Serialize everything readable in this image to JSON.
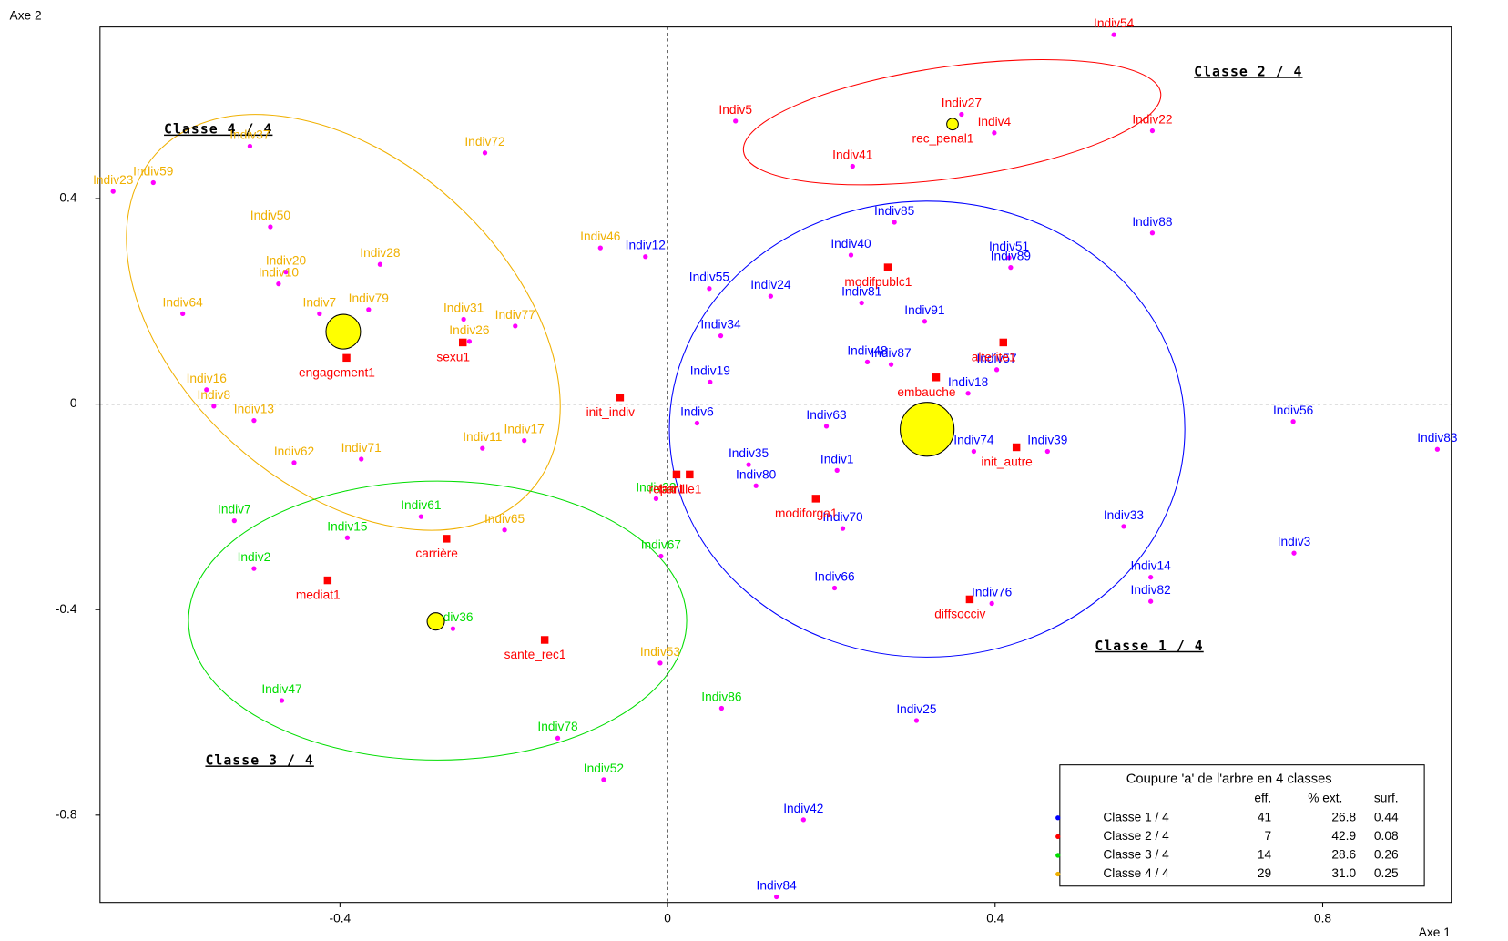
{
  "chart_data": {
    "type": "scatter",
    "xlabel": "Axe 1",
    "ylabel": "Axe 2",
    "xlim": [
      -0.693,
      0.957
    ],
    "ylim": [
      -0.97,
      0.734
    ],
    "xticks": [
      -0.4,
      0,
      0.4,
      0.8
    ],
    "yticks": [
      0.4,
      0,
      -0.4,
      -0.8
    ],
    "marker_color": "#ff00ff",
    "legend_title": "Coupure 'a' de l'arbre en  4 classes",
    "legend_columns": [
      "eff.",
      "% ext.",
      "surf."
    ],
    "series": [
      {
        "name": "Classe  1 / 4",
        "color": "#0000ff",
        "eff": 41,
        "ext": "26.8",
        "surf": 0.44,
        "labels": [
          "Indiv85",
          "Indiv12",
          "Indiv40",
          "Indiv51",
          "Indiv88",
          "Indiv89",
          "Indiv55",
          "Indiv24",
          "Indiv81",
          "Indiv91",
          "Indiv34",
          "Indiv48",
          "Indiv87",
          "Indiv57",
          "Indiv19",
          "Indiv18",
          "Indiv6",
          "Indiv63",
          "Indiv74",
          "Indiv39",
          "Indiv56",
          "Indiv83",
          "Indiv35",
          "Indiv1",
          "Indiv80",
          "Indiv70",
          "Indiv33",
          "Indiv3",
          "Indiv14",
          "Indiv82",
          "Indiv66",
          "Indiv76",
          "Indiv25",
          "Indiv42",
          "Indiv84"
        ],
        "x": [
          0.277,
          -0.027,
          0.224,
          0.417,
          0.592,
          0.419,
          0.051,
          0.126,
          0.237,
          0.314,
          0.065,
          0.244,
          0.273,
          0.402,
          0.052,
          0.367,
          0.036,
          0.194,
          0.374,
          0.464,
          0.764,
          0.94,
          0.099,
          0.207,
          0.108,
          0.214,
          0.557,
          0.765,
          0.59,
          0.59,
          0.204,
          0.396,
          0.304,
          0.166,
          0.133
        ],
        "y": [
          0.354,
          0.287,
          0.29,
          0.285,
          0.333,
          0.266,
          0.225,
          0.21,
          0.197,
          0.161,
          0.133,
          0.082,
          0.077,
          0.067,
          0.043,
          0.021,
          -0.037,
          -0.043,
          -0.092,
          -0.092,
          -0.034,
          -0.088,
          -0.118,
          -0.129,
          -0.159,
          -0.242,
          -0.238,
          -0.29,
          -0.337,
          -0.384,
          -0.358,
          -0.388,
          -0.616,
          -0.809,
          -0.959
        ]
      },
      {
        "name": "Classe  2 / 4",
        "color": "#ff0000",
        "eff": 7,
        "ext": "42.9",
        "surf": 0.08,
        "labels": [
          "Indiv54",
          "Indiv27",
          "Indiv5",
          "Indiv4",
          "Indiv22",
          "Indiv41"
        ],
        "x": [
          0.545,
          0.359,
          0.083,
          0.399,
          0.592,
          0.226
        ],
        "y": [
          0.719,
          0.564,
          0.551,
          0.528,
          0.532,
          0.463
        ]
      },
      {
        "name": "Classe  3 / 4",
        "color": "#00dd00",
        "eff": 14,
        "ext": "28.6",
        "surf": 0.26,
        "labels": [
          "Indiv7",
          "Indiv61",
          "Indiv15",
          "Indiv2",
          "Indiv36",
          "Indiv47",
          "Indiv78",
          "Indiv52",
          "Indiv86",
          "Indiv32",
          "Indiv67"
        ],
        "x": [
          -0.529,
          -0.301,
          -0.391,
          -0.505,
          -0.262,
          -0.471,
          -0.134,
          -0.078,
          0.066,
          -0.014,
          -0.008
        ],
        "y": [
          -0.227,
          -0.219,
          -0.26,
          -0.32,
          -0.437,
          -0.577,
          -0.65,
          -0.731,
          -0.592,
          -0.184,
          -0.296
        ]
      },
      {
        "name": "Classe  4 / 4",
        "color": "#f0b000",
        "eff": 29,
        "ext": "31.0",
        "surf": 0.25,
        "labels": [
          "Indiv59",
          "Indiv23",
          "Indiv37",
          "Indiv72",
          "Indiv50",
          "Indiv46",
          "Indiv28",
          "Indiv20",
          "Indiv10",
          "Indiv64",
          "Indiv7",
          "Indiv79",
          "Indiv31",
          "Indiv77",
          "Indiv26",
          "Indiv16",
          "Indiv8",
          "Indiv13",
          "Indiv17",
          "Indiv11",
          "Indiv62",
          "Indiv71",
          "Indiv53",
          "Indiv65"
        ],
        "x": [
          -0.628,
          -0.677,
          -0.51,
          -0.223,
          -0.485,
          -0.082,
          -0.351,
          -0.466,
          -0.475,
          -0.592,
          -0.425,
          -0.365,
          -0.249,
          -0.186,
          -0.242,
          -0.563,
          -0.554,
          -0.505,
          -0.175,
          -0.226,
          -0.456,
          -0.374,
          -0.009,
          -0.199
        ],
        "y": [
          0.431,
          0.414,
          0.502,
          0.489,
          0.345,
          0.304,
          0.272,
          0.257,
          0.234,
          0.176,
          0.176,
          0.184,
          0.165,
          0.152,
          0.122,
          0.028,
          -0.004,
          -0.032,
          -0.071,
          -0.086,
          -0.114,
          -0.107,
          -0.504,
          -0.245
        ]
      }
    ],
    "modalities": {
      "color": "#ff0000",
      "labels": [
        "engagement1",
        "sexu1",
        "init_indiv",
        "famille1",
        "repar1",
        "modifpublc1",
        "alterite1",
        "embauche",
        "init_autre",
        "modiforga1",
        "carrière",
        "mediat1",
        "sante_rec1",
        "diffsocciv",
        "rec_penal1"
      ],
      "x": [
        -0.392,
        -0.25,
        -0.058,
        0.027,
        0.011,
        0.269,
        0.41,
        0.328,
        0.426,
        0.181,
        -0.27,
        -0.415,
        -0.15,
        0.369,
        0.348
      ],
      "y": [
        0.09,
        0.12,
        0.013,
        -0.137,
        -0.137,
        0.266,
        0.12,
        0.052,
        -0.084,
        -0.184,
        -0.262,
        -0.343,
        -0.459,
        -0.38,
        0.545
      ]
    },
    "centers": {
      "color": "#ffff00",
      "x": [
        0.317,
        0.348,
        -0.283,
        -0.396
      ],
      "y": [
        -0.049,
        0.545,
        -0.423,
        0.141
      ],
      "size": [
        28,
        6,
        9,
        18
      ]
    }
  }
}
